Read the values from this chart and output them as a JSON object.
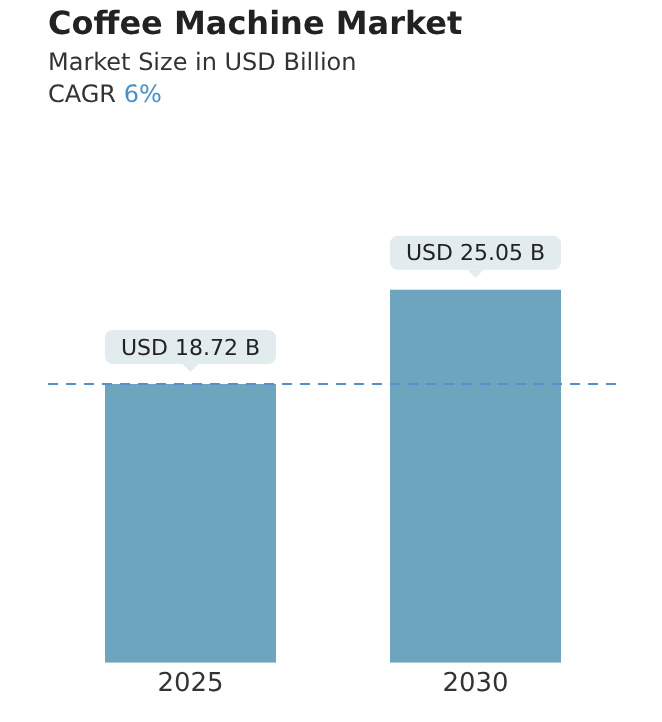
{
  "chart_data": {
    "type": "bar",
    "title": "Coffee Machine Market",
    "subtitle": "Market Size in USD Billion",
    "annotations": [
      "CAGR 6%"
    ],
    "categories": [
      "2025",
      "2030"
    ],
    "values": [
      18.72,
      25.05
    ],
    "color": "#6ea5be",
    "value_labels": [
      "USD 18.72 B",
      "USD 25.05 B"
    ],
    "ref_lines": [
      {
        "axis": "y",
        "value": 18.72,
        "color": "#5b8fc7",
        "line_style": "dashed"
      }
    ],
    "grid": false,
    "legend": false
  }
}
